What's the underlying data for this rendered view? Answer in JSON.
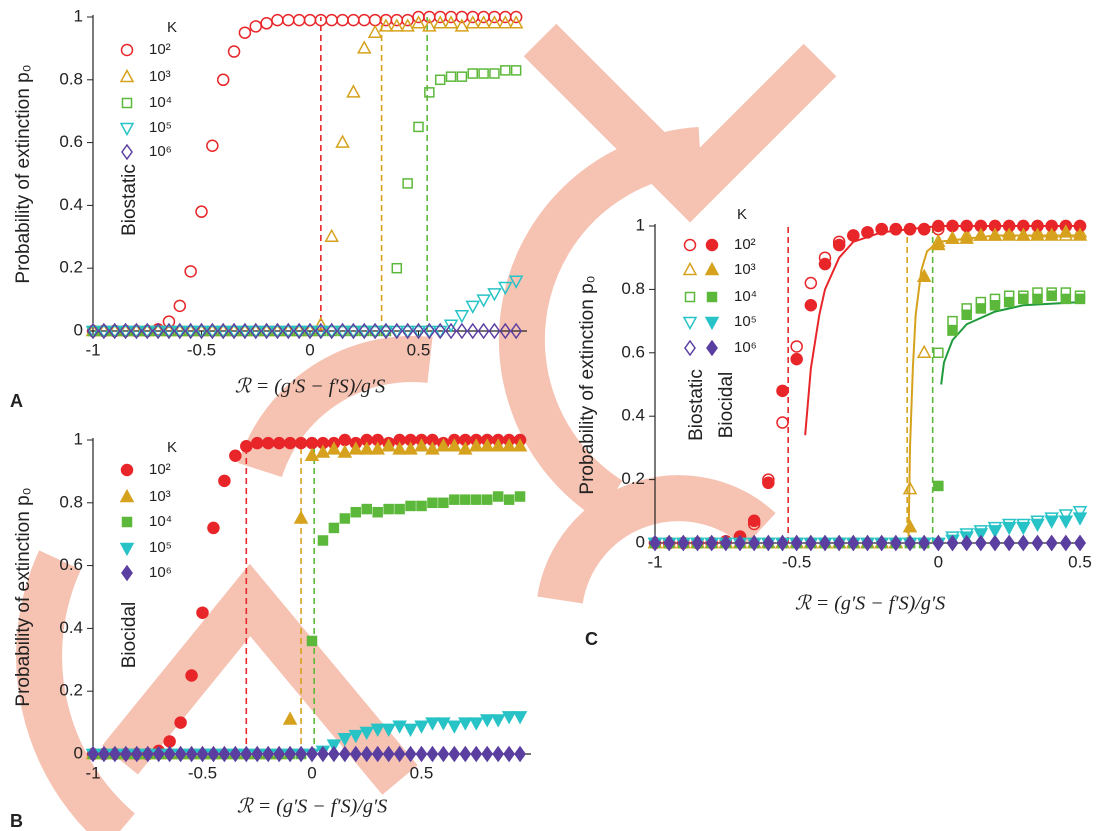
{
  "chart_data": [
    {
      "type": "scatter",
      "panel_label": "A",
      "ylabel": "Probability of extinction p₀",
      "xlabel": "ℛ = (g′S − f′S)/g′S",
      "annotations": [
        "Biostatic"
      ],
      "legend_title": "K",
      "xlim": [
        -1,
        1
      ],
      "ylim": [
        0,
        1
      ],
      "xticks": [
        -1,
        -0.5,
        0,
        0.5
      ],
      "yticks": [
        0,
        0.2,
        0.4,
        0.6,
        0.8,
        1
      ],
      "x": [
        -1,
        -0.95,
        -0.9,
        -0.85,
        -0.8,
        -0.75,
        -0.7,
        -0.65,
        -0.6,
        -0.55,
        -0.5,
        -0.45,
        -0.4,
        -0.35,
        -0.3,
        -0.25,
        -0.2,
        -0.15,
        -0.1,
        -0.05,
        0,
        0.05,
        0.1,
        0.15,
        0.2,
        0.25,
        0.3,
        0.35,
        0.4,
        0.45,
        0.5,
        0.55,
        0.6,
        0.65,
        0.7,
        0.75,
        0.8,
        0.85,
        0.9,
        0.95
      ],
      "series": [
        {
          "name": "10²",
          "color": "#e8262a",
          "marker": "circle",
          "filled": false,
          "values": [
            0,
            0,
            0,
            0,
            0,
            0,
            0.005,
            0.03,
            0.08,
            0.19,
            0.38,
            0.59,
            0.8,
            0.89,
            0.95,
            0.97,
            0.98,
            0.99,
            0.99,
            0.99,
            0.99,
            0.99,
            0.99,
            0.99,
            0.99,
            0.99,
            0.99,
            0.99,
            0.99,
            0.99,
            1,
            1,
            1,
            1,
            1,
            1,
            1,
            1,
            1,
            1
          ]
        },
        {
          "name": "10³",
          "color": "#d6a21e",
          "marker": "triangle-up",
          "filled": false,
          "values": [
            0,
            0,
            0,
            0,
            0,
            0,
            0,
            0,
            0,
            0,
            0,
            0,
            0,
            0,
            0,
            0,
            0,
            0,
            0,
            0,
            0,
            0.02,
            0.3,
            0.6,
            0.76,
            0.9,
            0.95,
            0.97,
            0.97,
            0.97,
            0.98,
            0.97,
            0.98,
            0.98,
            0.97,
            0.98,
            0.98,
            0.98,
            0.98,
            0.98
          ]
        },
        {
          "name": "10⁴",
          "color": "#5cb83a",
          "marker": "square",
          "filled": false,
          "values": [
            0,
            0,
            0,
            0,
            0,
            0,
            0,
            0,
            0,
            0,
            0,
            0,
            0,
            0,
            0,
            0,
            0,
            0,
            0,
            0,
            0,
            0,
            0,
            0,
            0,
            0,
            0,
            0,
            0.2,
            0.47,
            0.65,
            0.76,
            0.8,
            0.81,
            0.81,
            0.82,
            0.82,
            0.82,
            0.83,
            0.83
          ]
        },
        {
          "name": "10⁵",
          "color": "#27c3c6",
          "marker": "triangle-down",
          "filled": false,
          "values": [
            0,
            0,
            0,
            0,
            0,
            0,
            0,
            0,
            0,
            0,
            0,
            0,
            0,
            0,
            0,
            0,
            0,
            0,
            0,
            0,
            0,
            0,
            0,
            0,
            0,
            0,
            0,
            0,
            0,
            0,
            0,
            0,
            0,
            0.02,
            0.05,
            0.08,
            0.1,
            0.12,
            0.14,
            0.16
          ]
        },
        {
          "name": "10⁶",
          "color": "#5b3fa0",
          "marker": "diamond",
          "filled": false,
          "values": [
            0,
            0,
            0,
            0,
            0,
            0,
            0,
            0,
            0,
            0,
            0,
            0,
            0,
            0,
            0,
            0,
            0,
            0,
            0,
            0,
            0,
            0,
            0,
            0,
            0,
            0,
            0,
            0,
            0,
            0,
            0,
            0,
            0,
            0,
            0,
            0,
            0,
            0,
            0,
            0
          ]
        }
      ],
      "thresholds": [
        {
          "value": 0.05,
          "color": "#e8262a"
        },
        {
          "value": 0.33,
          "color": "#d6a21e"
        },
        {
          "value": 0.54,
          "color": "#5cb83a"
        }
      ]
    },
    {
      "type": "scatter",
      "panel_label": "B",
      "ylabel": "Probability of extinction p₀",
      "xlabel": "ℛ = (g′S − f′S)/g′S",
      "annotations": [
        "Biocidal"
      ],
      "legend_title": "K",
      "xlim": [
        -1,
        1
      ],
      "ylim": [
        0,
        1
      ],
      "xticks": [
        -1,
        -0.5,
        0,
        0.5
      ],
      "yticks": [
        0,
        0.2,
        0.4,
        0.6,
        0.8,
        1
      ],
      "x": [
        -1,
        -0.95,
        -0.9,
        -0.85,
        -0.8,
        -0.75,
        -0.7,
        -0.65,
        -0.6,
        -0.55,
        -0.5,
        -0.45,
        -0.4,
        -0.35,
        -0.3,
        -0.25,
        -0.2,
        -0.15,
        -0.1,
        -0.05,
        0,
        0.05,
        0.1,
        0.15,
        0.2,
        0.25,
        0.3,
        0.35,
        0.4,
        0.45,
        0.5,
        0.55,
        0.6,
        0.65,
        0.7,
        0.75,
        0.8,
        0.85,
        0.9,
        0.95
      ],
      "series": [
        {
          "name": "10²",
          "color": "#e8262a",
          "marker": "circle",
          "filled": true,
          "values": [
            0,
            0,
            0,
            0,
            0,
            0,
            0.01,
            0.04,
            0.1,
            0.25,
            0.45,
            0.72,
            0.87,
            0.95,
            0.98,
            0.99,
            0.99,
            0.99,
            0.99,
            0.99,
            0.99,
            0.99,
            0.99,
            1,
            0.99,
            1,
            1,
            0.99,
            1,
            1,
            1,
            1,
            0.99,
            1,
            1,
            1,
            1,
            1,
            1,
            1
          ]
        },
        {
          "name": "10³",
          "color": "#d6a21e",
          "marker": "triangle-up",
          "filled": true,
          "values": [
            0,
            0,
            0,
            0,
            0,
            0,
            0,
            0,
            0,
            0,
            0,
            0,
            0,
            0,
            0,
            0,
            0,
            0,
            0.11,
            0.75,
            0.95,
            0.96,
            0.97,
            0.96,
            0.97,
            0.97,
            0.97,
            0.98,
            0.97,
            0.97,
            0.98,
            0.97,
            0.98,
            0.98,
            0.97,
            0.98,
            0.98,
            0.98,
            0.98,
            0.98
          ]
        },
        {
          "name": "10⁴",
          "color": "#5cb83a",
          "marker": "square",
          "filled": true,
          "values": [
            0,
            0,
            0,
            0,
            0,
            0,
            0,
            0,
            0,
            0,
            0,
            0,
            0,
            0,
            0,
            0,
            0,
            0,
            0,
            0,
            0.36,
            0.68,
            0.72,
            0.75,
            0.77,
            0.78,
            0.77,
            0.78,
            0.78,
            0.79,
            0.79,
            0.8,
            0.8,
            0.81,
            0.81,
            0.81,
            0.81,
            0.82,
            0.81,
            0.82
          ]
        },
        {
          "name": "10⁵",
          "color": "#27c3c6",
          "marker": "triangle-down",
          "filled": true,
          "values": [
            0,
            0,
            0,
            0,
            0,
            0,
            0,
            0,
            0,
            0,
            0,
            0,
            0,
            0,
            0,
            0,
            0,
            0,
            0,
            0,
            0,
            0.01,
            0.03,
            0.05,
            0.06,
            0.07,
            0.08,
            0.08,
            0.09,
            0.08,
            0.09,
            0.1,
            0.1,
            0.09,
            0.1,
            0.1,
            0.11,
            0.11,
            0.12,
            0.12
          ]
        },
        {
          "name": "10⁶",
          "color": "#5b3fa0",
          "marker": "diamond",
          "filled": true,
          "values": [
            0,
            0,
            0,
            0,
            0,
            0,
            0,
            0,
            0,
            0,
            0,
            0,
            0,
            0,
            0,
            0,
            0,
            0,
            0,
            0,
            0,
            0,
            0,
            0,
            0,
            0,
            0,
            0,
            0,
            0,
            0,
            0,
            0,
            0,
            0,
            0,
            0,
            0,
            0,
            0
          ]
        }
      ],
      "thresholds": [
        {
          "value": -0.3,
          "color": "#e8262a"
        },
        {
          "value": -0.05,
          "color": "#d6a21e"
        },
        {
          "value": 0.01,
          "color": "#5cb83a"
        }
      ]
    },
    {
      "type": "scatter",
      "panel_label": "C",
      "ylabel": "Probability of extinction p₀",
      "xlabel": "ℛ = (g′S − f′S)/g′S",
      "annotations": [
        "Biostatic",
        "Biocidal"
      ],
      "legend_title": "K",
      "xlim": [
        -1,
        0.5
      ],
      "ylim": [
        0,
        1
      ],
      "xticks": [
        -1,
        -0.5,
        0,
        0.5
      ],
      "yticks": [
        0,
        0.2,
        0.4,
        0.6,
        0.8,
        1
      ],
      "x": [
        -1,
        -0.95,
        -0.9,
        -0.85,
        -0.8,
        -0.75,
        -0.7,
        -0.65,
        -0.6,
        -0.55,
        -0.5,
        -0.45,
        -0.4,
        -0.35,
        -0.3,
        -0.25,
        -0.2,
        -0.15,
        -0.1,
        -0.05,
        0,
        0.05,
        0.1,
        0.15,
        0.2,
        0.25,
        0.3,
        0.35,
        0.4,
        0.45,
        0.5
      ],
      "series": [
        {
          "name": "10²",
          "color": "#e8262a",
          "marker": "circle",
          "filled": false,
          "values": [
            0,
            0,
            0,
            0,
            0,
            0.005,
            0.02,
            0.06,
            0.2,
            0.38,
            0.62,
            0.82,
            0.9,
            0.95,
            0.97,
            0.98,
            0.99,
            0.99,
            0.99,
            0.99,
            0.99,
            1,
            1,
            1,
            1,
            1,
            1,
            1,
            1,
            1,
            1
          ]
        },
        {
          "name": "10³",
          "color": "#d6a21e",
          "marker": "triangle-up",
          "filled": false,
          "values": [
            0,
            0,
            0,
            0,
            0,
            0,
            0,
            0,
            0,
            0,
            0,
            0,
            0,
            0,
            0,
            0,
            0,
            0,
            0.17,
            0.6,
            0.95,
            0.96,
            0.97,
            0.97,
            0.97,
            0.98,
            0.97,
            0.98,
            0.98,
            0.97,
            0.98
          ]
        },
        {
          "name": "10⁴",
          "color": "#5cb83a",
          "marker": "square",
          "filled": false,
          "values": [
            0,
            0,
            0,
            0,
            0,
            0,
            0,
            0,
            0,
            0,
            0,
            0,
            0,
            0,
            0,
            0,
            0,
            0,
            0,
            0,
            0.6,
            0.7,
            0.74,
            0.76,
            0.77,
            0.78,
            0.78,
            0.79,
            0.79,
            0.79,
            0.78
          ]
        },
        {
          "name": "10⁵",
          "color": "#27c3c6",
          "marker": "triangle-down",
          "filled": false,
          "values": [
            0,
            0,
            0,
            0,
            0,
            0,
            0,
            0,
            0,
            0,
            0,
            0,
            0,
            0,
            0,
            0,
            0,
            0,
            0,
            0,
            0,
            0.02,
            0.03,
            0.04,
            0.05,
            0.06,
            0.06,
            0.07,
            0.08,
            0.09,
            0.1
          ]
        },
        {
          "name": "10⁶",
          "color": "#5b3fa0",
          "marker": "diamond",
          "filled": false,
          "values": [
            0,
            0,
            0,
            0,
            0,
            0,
            0,
            0,
            0,
            0,
            0,
            0,
            0,
            0,
            0,
            0,
            0,
            0,
            0,
            0,
            0,
            0,
            0,
            0,
            0,
            0,
            0,
            0,
            0,
            0,
            0
          ]
        },
        {
          "color": "#e8262a",
          "marker": "circle",
          "filled": true,
          "values": [
            0,
            0,
            0,
            0,
            0,
            0.005,
            0.02,
            0.07,
            0.19,
            0.48,
            0.58,
            0.75,
            0.88,
            0.94,
            0.97,
            0.98,
            0.99,
            0.99,
            0.99,
            0.99,
            1,
            1,
            1,
            1,
            1,
            1,
            1,
            1,
            1,
            1,
            1
          ]
        },
        {
          "color": "#d6a21e",
          "marker": "triangle-up",
          "filled": true,
          "values": [
            0,
            0,
            0,
            0,
            0,
            0,
            0,
            0,
            0,
            0,
            0,
            0,
            0,
            0,
            0,
            0,
            0,
            0,
            0.05,
            0.84,
            0.94,
            0.96,
            0.96,
            0.97,
            0.97,
            0.97,
            0.97,
            0.97,
            0.97,
            0.98,
            0.97
          ]
        },
        {
          "color": "#5cb83a",
          "marker": "square",
          "filled": true,
          "values": [
            0,
            0,
            0,
            0,
            0,
            0,
            0,
            0,
            0,
            0,
            0,
            0,
            0,
            0,
            0,
            0,
            0,
            0,
            0,
            0,
            0.18,
            0.67,
            0.72,
            0.74,
            0.75,
            0.76,
            0.77,
            0.77,
            0.78,
            0.77,
            0.77
          ]
        },
        {
          "color": "#27c3c6",
          "marker": "triangle-down",
          "filled": true,
          "values": [
            0,
            0,
            0,
            0,
            0,
            0,
            0,
            0,
            0,
            0,
            0,
            0,
            0,
            0,
            0,
            0,
            0,
            0,
            0,
            0,
            0,
            0.01,
            0.02,
            0.03,
            0.04,
            0.05,
            0.05,
            0.06,
            0.07,
            0.07,
            0.08
          ]
        },
        {
          "color": "#5b3fa0",
          "marker": "diamond",
          "filled": true,
          "values": [
            0,
            0,
            0,
            0,
            0,
            0,
            0,
            0,
            0,
            0,
            0,
            0,
            0,
            0,
            0,
            0,
            0,
            0,
            0,
            0,
            0,
            0,
            0,
            0,
            0,
            0,
            0,
            0,
            0,
            0,
            0
          ]
        }
      ],
      "curves": [
        {
          "color": "#e8262a",
          "x": [
            -0.47,
            -0.45,
            -0.42,
            -0.4,
            -0.35,
            -0.3,
            -0.2,
            -0.1,
            0,
            0.5
          ],
          "values": [
            0.34,
            0.55,
            0.72,
            0.8,
            0.9,
            0.95,
            0.98,
            0.99,
            1,
            1
          ]
        },
        {
          "color": "#d6a21e",
          "x": [
            -0.105,
            -0.1,
            -0.09,
            -0.08,
            -0.06,
            -0.04,
            0,
            0.2,
            0.5
          ],
          "values": [
            0.02,
            0.3,
            0.55,
            0.72,
            0.86,
            0.92,
            0.95,
            0.97,
            0.97
          ]
        },
        {
          "color": "#1f9a3a",
          "x": [
            0.01,
            0.02,
            0.05,
            0.1,
            0.2,
            0.3,
            0.5
          ],
          "values": [
            0.5,
            0.57,
            0.64,
            0.69,
            0.73,
            0.75,
            0.76
          ]
        }
      ],
      "thresholds": [
        {
          "value": -0.53,
          "color": "#e8262a"
        },
        {
          "value": -0.11,
          "color": "#d6a21e"
        },
        {
          "value": -0.02,
          "color": "#5cb83a"
        }
      ]
    }
  ]
}
